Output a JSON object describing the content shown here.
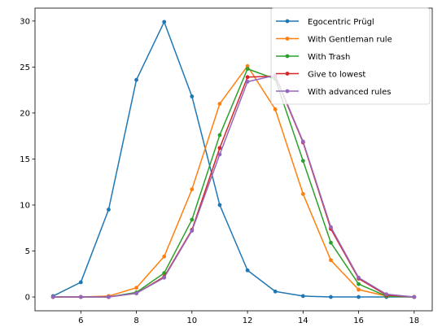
{
  "chart_data": {
    "type": "line",
    "title": "",
    "xlabel": "",
    "ylabel": "",
    "xlim": [
      4.35,
      18.65
    ],
    "ylim": [
      -1.5,
      31.4
    ],
    "x_ticks": [
      6,
      8,
      10,
      12,
      14,
      16,
      18
    ],
    "y_ticks": [
      0,
      5,
      10,
      15,
      20,
      25,
      30
    ],
    "grid": false,
    "legend_position": "top-right",
    "x": [
      5,
      6,
      7,
      8,
      9,
      10,
      11,
      12,
      13,
      14,
      15,
      16,
      17,
      18
    ],
    "series": [
      {
        "name": "Egocentric Prügl",
        "color": "#1f77b4",
        "values": [
          0.1,
          1.6,
          9.5,
          23.6,
          29.9,
          21.8,
          10.0,
          2.9,
          0.6,
          0.1,
          0.0,
          0.0,
          0.0,
          0.0
        ]
      },
      {
        "name": "With Gentleman rule",
        "color": "#ff7f0e",
        "values": [
          0.0,
          0.0,
          0.1,
          1.0,
          4.4,
          11.7,
          21.0,
          25.1,
          20.4,
          11.2,
          4.0,
          0.8,
          0.1,
          0.0
        ]
      },
      {
        "name": "With Trash",
        "color": "#2ca02c",
        "values": [
          0.0,
          0.0,
          0.0,
          0.5,
          2.6,
          8.4,
          17.6,
          24.8,
          23.7,
          14.8,
          5.9,
          1.4,
          0.1,
          0.0
        ]
      },
      {
        "name": "Give to lowest",
        "color": "#d62728",
        "values": [
          0.0,
          0.0,
          0.0,
          0.4,
          2.2,
          7.3,
          16.2,
          23.9,
          24.0,
          16.8,
          7.4,
          2.0,
          0.2,
          0.0
        ]
      },
      {
        "name": "With advanced rules",
        "color": "#9467bd",
        "values": [
          0.0,
          0.0,
          0.0,
          0.4,
          2.1,
          7.2,
          15.5,
          23.4,
          24.1,
          16.9,
          7.6,
          2.1,
          0.3,
          0.0
        ]
      }
    ]
  }
}
